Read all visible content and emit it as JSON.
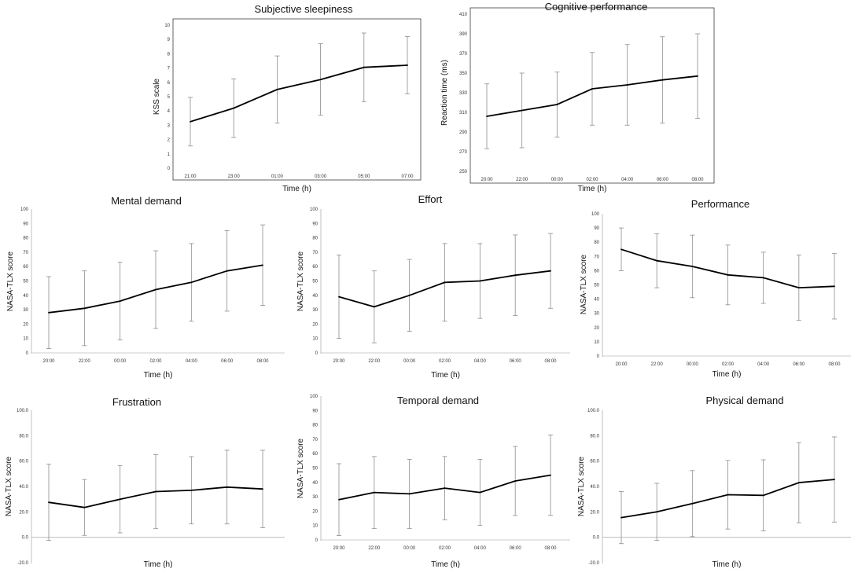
{
  "figure": {
    "description_title": ""
  },
  "chart_data": [
    {
      "id": "sleepiness",
      "type": "line",
      "title": "Subjective sleepiness",
      "xlabel": "Time (h)",
      "ylabel": "KSS scale",
      "categories": [
        "21:00",
        "23:00",
        "01:00",
        "03:00",
        "05:00",
        "07:00"
      ],
      "values": [
        3.25,
        4.2,
        5.5,
        6.2,
        7.05,
        7.2
      ],
      "error": [
        1.7,
        2.05,
        2.35,
        2.5,
        2.4,
        2.0
      ],
      "ylim": [
        0,
        10
      ],
      "yticks": [
        0,
        1,
        2,
        3,
        4,
        5,
        6,
        7,
        8,
        9,
        10
      ],
      "ytick_labels": [
        "0",
        "1",
        "2",
        "3",
        "4",
        "5",
        "6",
        "7",
        "8",
        "9",
        "10"
      ],
      "has_frame": true,
      "grid": false,
      "colors": {
        "line": "#000000",
        "error": "#8c8c8c"
      }
    },
    {
      "id": "cognitive",
      "type": "line",
      "title": "Cognitive performance",
      "xlabel": "Time (h)",
      "ylabel": "Reaction time (ms)",
      "categories": [
        "20:00",
        "22:00",
        "00:00",
        "02:00",
        "04:00",
        "06:00",
        "08:00"
      ],
      "values": [
        306,
        312,
        318,
        334,
        338,
        343,
        347
      ],
      "error": [
        33,
        38,
        33,
        37,
        41,
        44,
        43
      ],
      "ylim": [
        250,
        410
      ],
      "yticks": [
        250,
        270,
        290,
        310,
        330,
        350,
        370,
        390,
        410
      ],
      "ytick_labels": [
        "250",
        "270",
        "290",
        "310",
        "330",
        "350",
        "370",
        "390",
        "410"
      ],
      "has_frame": true,
      "grid": false,
      "colors": {
        "line": "#000000",
        "error": "#8c8c8c"
      }
    },
    {
      "id": "mental",
      "type": "line",
      "title": "Mental demand",
      "xlabel": "Time (h)",
      "ylabel": "NASA-TLX score",
      "categories": [
        "20:00",
        "22:00",
        "00:00",
        "02:00",
        "04:00",
        "06:00",
        "08:00"
      ],
      "values": [
        28,
        31,
        36,
        44,
        49,
        57,
        61
      ],
      "error": [
        25,
        26,
        27,
        27,
        27,
        28,
        28
      ],
      "ylim": [
        0,
        100
      ],
      "yticks": [
        0,
        10,
        20,
        30,
        40,
        50,
        60,
        70,
        80,
        90,
        100
      ],
      "ytick_labels": [
        "0",
        "10",
        "20",
        "30",
        "40",
        "50",
        "60",
        "70",
        "80",
        "90",
        "100"
      ],
      "has_frame": false,
      "grid": false,
      "colors": {
        "line": "#000000",
        "error": "#8c8c8c"
      }
    },
    {
      "id": "effort",
      "type": "line",
      "title": "Effort",
      "xlabel": "Time (h)",
      "ylabel": "NASA-TLX score",
      "categories": [
        "20:00",
        "22:00",
        "00:00",
        "02:00",
        "04:00",
        "06:00",
        "08:00"
      ],
      "values": [
        39,
        32,
        40,
        49,
        50,
        54,
        57
      ],
      "error": [
        29,
        25,
        25,
        27,
        26,
        28,
        26
      ],
      "ylim": [
        0,
        100
      ],
      "yticks": [
        0,
        10,
        20,
        30,
        40,
        50,
        60,
        70,
        80,
        90,
        100
      ],
      "ytick_labels": [
        "0",
        "10",
        "20",
        "30",
        "40",
        "50",
        "60",
        "70",
        "80",
        "90",
        "100"
      ],
      "has_frame": false,
      "grid": false,
      "colors": {
        "line": "#000000",
        "error": "#8c8c8c"
      }
    },
    {
      "id": "performance",
      "type": "line",
      "title": "Performance",
      "xlabel": "Time (h)",
      "ylabel": "NASA-TLX score",
      "categories": [
        "20:00",
        "22:00",
        "00:00",
        "02:00",
        "04:00",
        "06:00",
        "08:00"
      ],
      "values": [
        75,
        67,
        63,
        57,
        55,
        48,
        49
      ],
      "error": [
        15,
        19,
        22,
        21,
        18,
        23,
        23
      ],
      "ylim": [
        0,
        100
      ],
      "yticks": [
        0,
        10,
        20,
        30,
        40,
        50,
        60,
        70,
        80,
        90,
        100
      ],
      "ytick_labels": [
        "0",
        "10",
        "20",
        "30",
        "40",
        "50",
        "60",
        "70",
        "80",
        "90",
        "100"
      ],
      "has_frame": false,
      "grid": false,
      "colors": {
        "line": "#000000",
        "error": "#8c8c8c"
      }
    },
    {
      "id": "frustration",
      "type": "line",
      "title": "Frustration",
      "xlabel": "Time (h)",
      "ylabel": "NASA-TLX score",
      "categories": [
        "20:00",
        "22:00",
        "00:00",
        "02:00",
        "04:00",
        "06:00",
        "08:00"
      ],
      "values": [
        27.5,
        23.5,
        30,
        36,
        37,
        39.5,
        38
      ],
      "error": [
        30,
        22,
        26.5,
        29,
        26.5,
        29,
        30.5
      ],
      "ylim": [
        -20,
        100
      ],
      "yticks": [
        -20,
        0,
        20,
        40,
        60,
        80,
        100
      ],
      "ytick_labels": [
        "-20.0",
        "0.0",
        "20.0",
        "40.0",
        "60.0",
        "80.0",
        "100.0"
      ],
      "has_frame": false,
      "grid": false,
      "colors": {
        "line": "#000000",
        "error": "#8c8c8c"
      }
    },
    {
      "id": "temporal",
      "type": "line",
      "title": "Temporal demand",
      "xlabel": "Time (h)",
      "ylabel": "NASA-TLX score",
      "categories": [
        "20:00",
        "22:00",
        "00:00",
        "02:00",
        "04:00",
        "06:00",
        "08:00"
      ],
      "values": [
        28,
        33,
        32,
        36,
        33,
        41,
        45
      ],
      "error": [
        25,
        25,
        24,
        22,
        23,
        24,
        28
      ],
      "ylim": [
        0,
        100
      ],
      "yticks": [
        0,
        10,
        20,
        30,
        40,
        50,
        60,
        70,
        80,
        90,
        100
      ],
      "ytick_labels": [
        "0",
        "10",
        "20",
        "30",
        "40",
        "50",
        "60",
        "70",
        "80",
        "90",
        "100"
      ],
      "has_frame": false,
      "grid": false,
      "colors": {
        "line": "#000000",
        "error": "#8c8c8c"
      }
    },
    {
      "id": "physical",
      "type": "line",
      "title": "Physical demand",
      "xlabel": "Time (h)",
      "ylabel": "NASA-TLX score",
      "categories": [
        "20:00",
        "22:00",
        "00:00",
        "02:00",
        "04:00",
        "06:00",
        "08:00"
      ],
      "values": [
        15.5,
        20,
        26.5,
        33.5,
        33,
        43,
        45.5
      ],
      "error": [
        20.5,
        22.5,
        26,
        27,
        28,
        31.5,
        33.5
      ],
      "ylim": [
        -20,
        100
      ],
      "yticks": [
        -20,
        0,
        20,
        40,
        60,
        80,
        100
      ],
      "ytick_labels": [
        "-20.0",
        "0.0",
        "20.0",
        "40.0",
        "60.0",
        "80.0",
        "100.0"
      ],
      "has_frame": false,
      "grid": false,
      "colors": {
        "line": "#000000",
        "error": "#8c8c8c"
      }
    }
  ]
}
